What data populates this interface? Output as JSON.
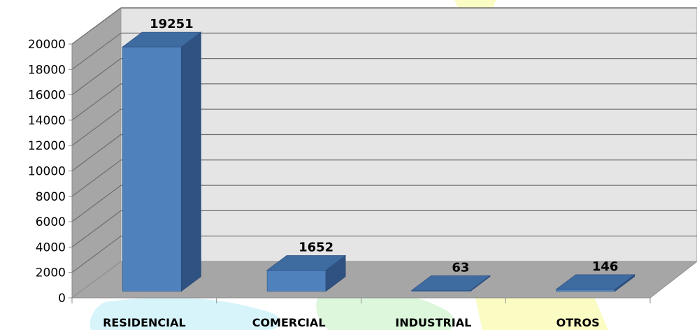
{
  "chart_data": {
    "type": "bar",
    "categories": [
      "RESIDENCIAL",
      "COMERCIAL",
      "INDUSTRIAL",
      "OTROS"
    ],
    "values": [
      19251,
      1652,
      63,
      146
    ],
    "data_labels": [
      "19251",
      "1652",
      "63",
      "146"
    ],
    "yticks": [
      "0",
      "2000",
      "4000",
      "6000",
      "8000",
      "10000",
      "12000",
      "14000",
      "16000",
      "18000",
      "20000"
    ],
    "ylim": [
      0,
      20000
    ],
    "grid": true,
    "style": "3d-column",
    "colors": {
      "bar_front": "#4f81bd",
      "bar_top": "#3e6ba0",
      "bar_side": "#2f5283",
      "back_wall": "#e5e5e5",
      "side_wall": "#a6a6a6",
      "floor": "#a6a6a6",
      "gridline": "#6e6e6e",
      "watermark_cyan": "#d7f4fb",
      "watermark_green": "#dcf7dc",
      "watermark_yellow": "#fbfbc4"
    }
  }
}
